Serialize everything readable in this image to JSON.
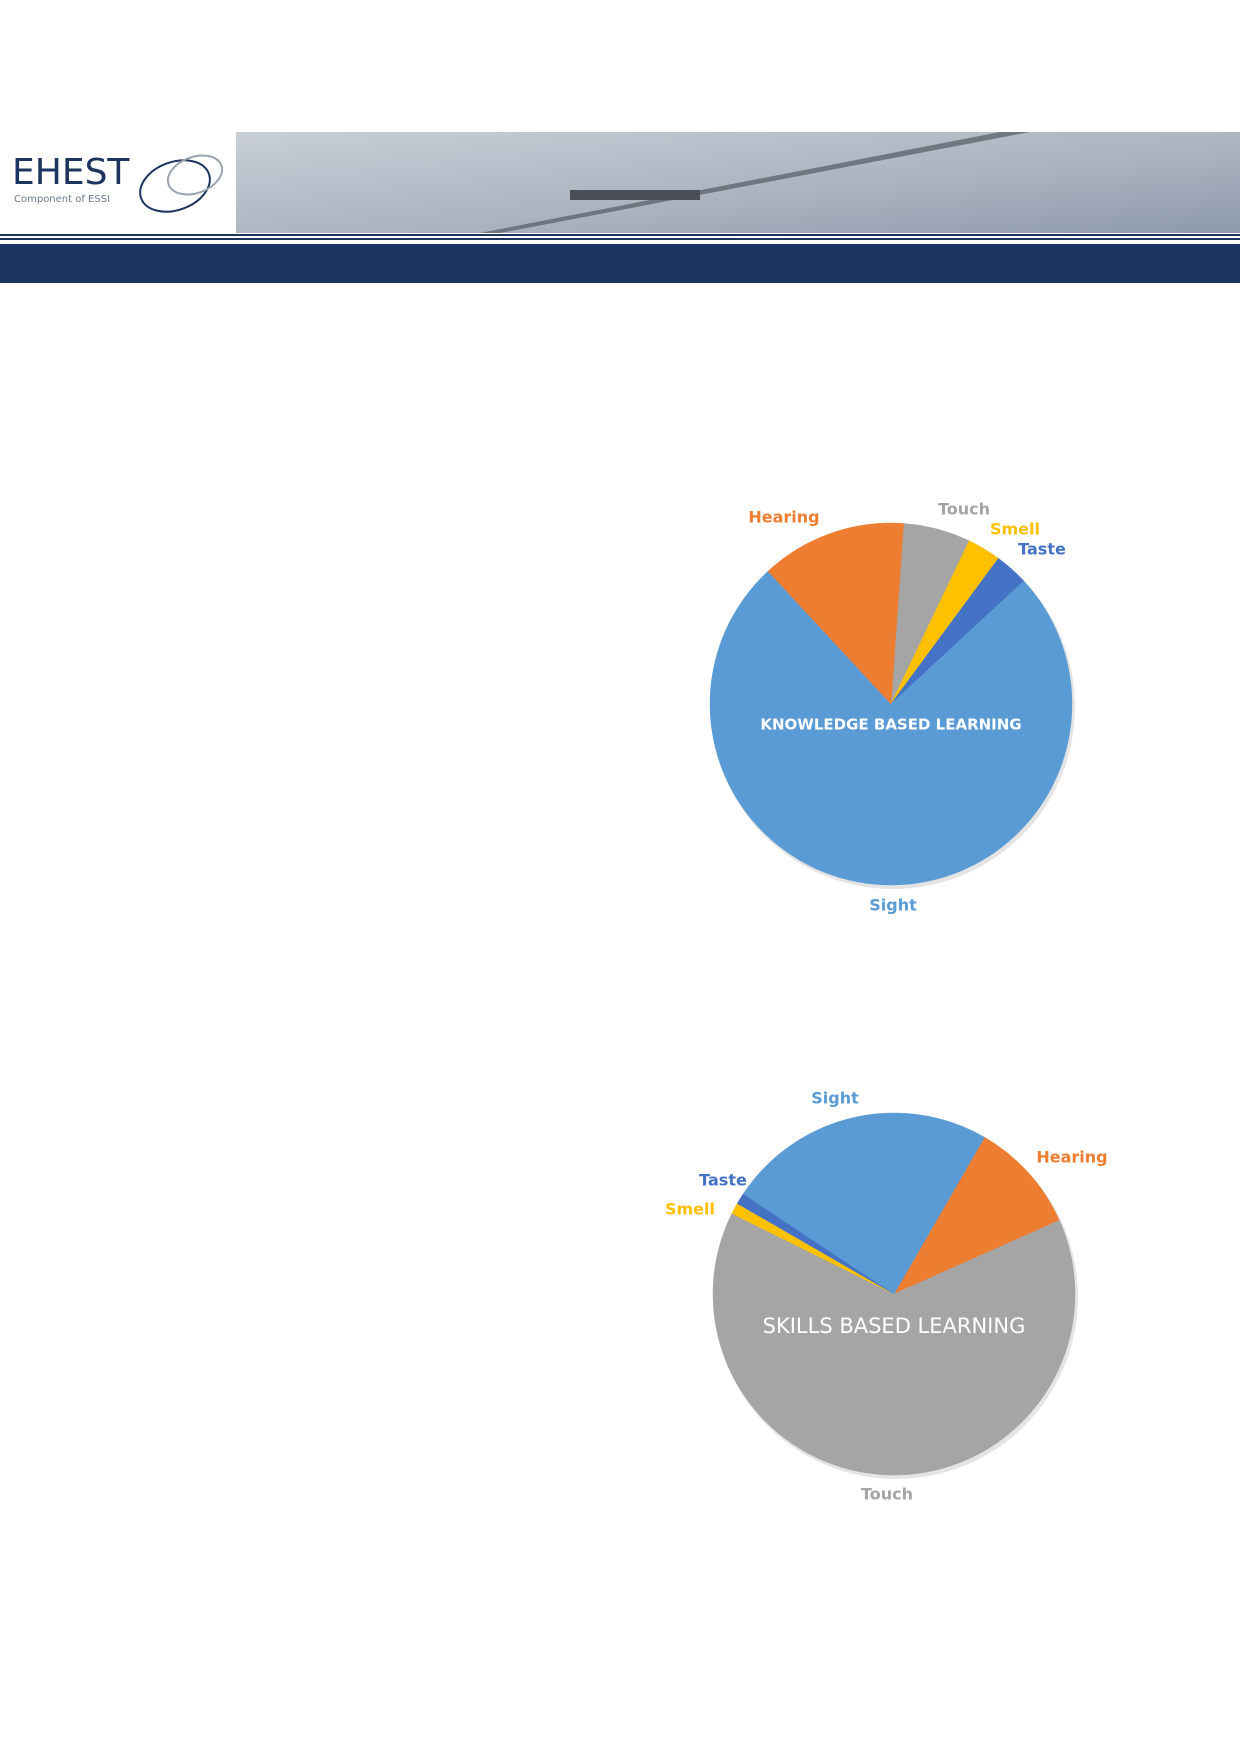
{
  "header": {
    "logo": "EHEST",
    "tagline": "Component of ESSI"
  },
  "chart_data": [
    {
      "type": "pie",
      "title": "KNOWLEDGE BASED LEARNING",
      "categories": [
        "Touch",
        "Smell",
        "Taste",
        "Sight",
        "Hearing"
      ],
      "values": [
        6,
        3,
        3,
        75,
        13
      ],
      "colors": [
        "#a5a5a5",
        "#ffc000",
        "#4472c4",
        "#5b9bd5",
        "#ed7d31"
      ]
    },
    {
      "type": "pie",
      "title": "SKILLS BASED LEARNING",
      "categories": [
        "Hearing",
        "Touch",
        "Smell",
        "Taste",
        "Sight"
      ],
      "values": [
        10,
        64,
        1,
        1,
        24
      ],
      "colors": [
        "#ed7d31",
        "#a5a5a5",
        "#ffc000",
        "#4472c4",
        "#5b9bd5"
      ]
    }
  ]
}
